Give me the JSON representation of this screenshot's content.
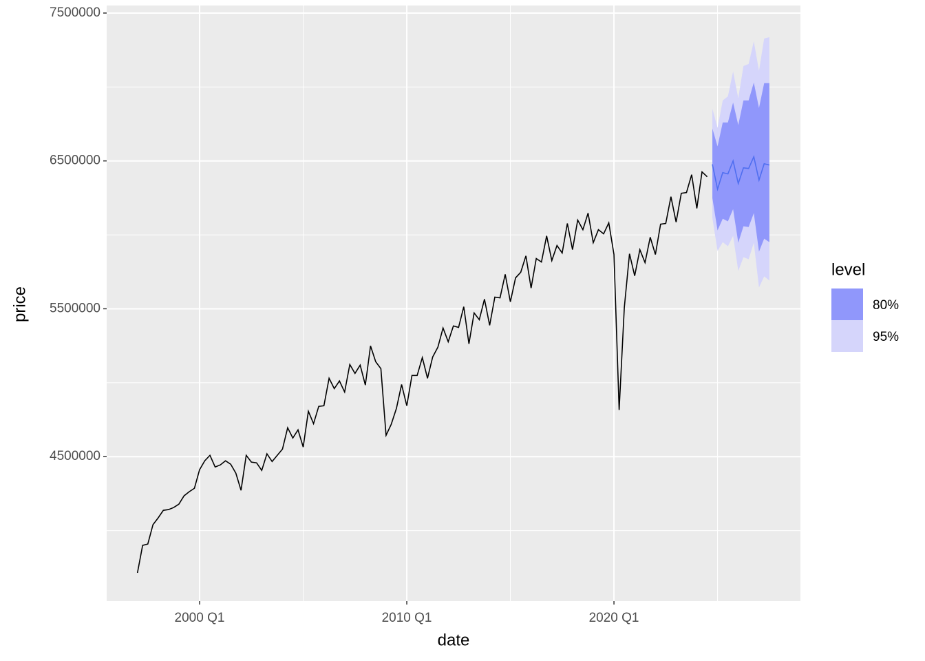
{
  "chart_data": {
    "type": "line",
    "x_label": "date",
    "y_label": "price",
    "xlim": [
      1995.515,
      2029.0
    ],
    "ylim": [
      3523000,
      7551000
    ],
    "xticks": [
      {
        "value": 2000,
        "label": "2000 Q1"
      },
      {
        "value": 2010,
        "label": "2010 Q1"
      },
      {
        "value": 2020,
        "label": "2020 Q1"
      }
    ],
    "xminorticks": [
      1995,
      2005,
      2015,
      2025
    ],
    "yticks": [
      4500000,
      5500000,
      6500000,
      7500000
    ],
    "yminorticks": [
      4000000,
      5000000,
      6000000,
      7000000
    ],
    "grid": true,
    "series": [
      {
        "color": "#000000",
        "x": [
          1997,
          1997.25,
          1997.5,
          1997.75,
          1998,
          1998.25,
          1998.5,
          1998.75,
          1999,
          1999.25,
          1999.5,
          1999.75,
          2000,
          2000.25,
          2000.5,
          2000.75,
          2001,
          2001.25,
          2001.5,
          2001.75,
          2002,
          2002.25,
          2002.5,
          2002.75,
          2003,
          2003.25,
          2003.5,
          2003.75,
          2004,
          2004.25,
          2004.5,
          2004.75,
          2005,
          2005.25,
          2005.5,
          2005.75,
          2006,
          2006.25,
          2006.5,
          2006.75,
          2007,
          2007.25,
          2007.5,
          2007.75,
          2008,
          2008.25,
          2008.5,
          2008.75,
          2009,
          2009.25,
          2009.5,
          2009.75,
          2010,
          2010.25,
          2010.5,
          2010.75,
          2011,
          2011.25,
          2011.5,
          2011.75,
          2012,
          2012.25,
          2012.5,
          2012.75,
          2013,
          2013.25,
          2013.5,
          2013.75,
          2014,
          2014.25,
          2014.5,
          2014.75,
          2015,
          2015.25,
          2015.5,
          2015.75,
          2016,
          2016.25,
          2016.5,
          2016.75,
          2017,
          2017.25,
          2017.5,
          2017.75,
          2018,
          2018.25,
          2018.5,
          2018.75,
          2019,
          2019.25,
          2019.5,
          2019.75,
          2020,
          2020.25,
          2020.5,
          2020.75,
          2021,
          2021.25,
          2021.5,
          2021.75,
          2022,
          2022.25,
          2022.5,
          2022.75,
          2023,
          2023.25,
          2023.5,
          2023.75,
          2024,
          2024.25,
          2024.5
        ],
        "values": [
          3714000,
          3900000,
          3909000,
          4040000,
          4086000,
          4137000,
          4142000,
          4156000,
          4179000,
          4235000,
          4263000,
          4286000,
          4412000,
          4472000,
          4509000,
          4430000,
          4444000,
          4472000,
          4449000,
          4388000,
          4272000,
          4509000,
          4463000,
          4458000,
          4407000,
          4519000,
          4467000,
          4509000,
          4551000,
          4695000,
          4626000,
          4681000,
          4565000,
          4807000,
          4723000,
          4840000,
          4844000,
          5030000,
          4960000,
          5012000,
          4937000,
          5123000,
          5063000,
          5119000,
          4984000,
          5249000,
          5142000,
          5095000,
          4644000,
          4719000,
          4826000,
          4988000,
          4844000,
          5049000,
          5049000,
          5170000,
          5030000,
          5174000,
          5240000,
          5370000,
          5277000,
          5384000,
          5374000,
          5514000,
          5263000,
          5472000,
          5426000,
          5565000,
          5388000,
          5579000,
          5574000,
          5733000,
          5547000,
          5709000,
          5747000,
          5858000,
          5640000,
          5840000,
          5816000,
          5993000,
          5826000,
          5928000,
          5877000,
          6077000,
          5900000,
          6100000,
          6035000,
          6147000,
          5947000,
          6035000,
          6007000,
          6081000,
          5867000,
          4816000,
          5509000,
          5872000,
          5723000,
          5900000,
          5812000,
          5984000,
          5867000,
          6072000,
          6077000,
          6258000,
          6086000,
          6281000,
          6286000,
          6407000,
          6179000,
          6426000,
          6393000
        ]
      },
      {
        "color": "#4f6ef0",
        "x": [
          2024.75,
          2025,
          2025.25,
          2025.5,
          2025.75,
          2026,
          2026.25,
          2026.5,
          2026.75,
          2027,
          2027.25,
          2027.5
        ],
        "values": [
          6477000,
          6309000,
          6421000,
          6412000,
          6500000,
          6347000,
          6453000,
          6449000,
          6528000,
          6370000,
          6481000,
          6472000
        ]
      }
    ],
    "legend_title": "level",
    "intervals": [
      {
        "name": "80%",
        "color": "#9097fb",
        "lower": [
          6249000,
          6030000,
          6109000,
          6091000,
          6174000,
          5947000,
          6058000,
          6053000,
          6147000,
          5886000,
          5974000,
          5951000
        ],
        "upper": [
          6719000,
          6598000,
          6760000,
          6760000,
          6895000,
          6742000,
          6909000,
          6909000,
          7030000,
          6858000,
          7026000,
          7026000
        ]
      },
      {
        "name": "95%",
        "color": "#d5d5fb",
        "lower": [
          6114000,
          5891000,
          5951000,
          5923000,
          5993000,
          5756000,
          5849000,
          5835000,
          5947000,
          5644000,
          5719000,
          5691000
        ],
        "upper": [
          6853000,
          6723000,
          6909000,
          6937000,
          7105000,
          6923000,
          7142000,
          7156000,
          7309000,
          7109000,
          7328000,
          7337000
        ]
      }
    ]
  }
}
